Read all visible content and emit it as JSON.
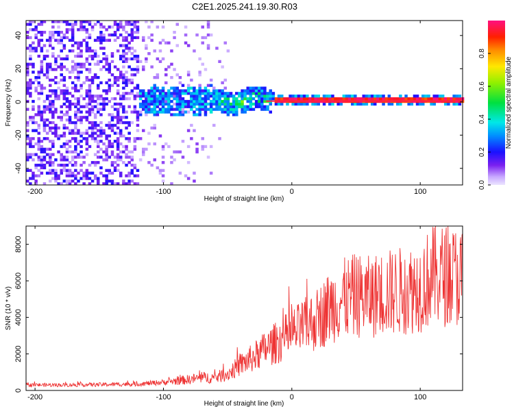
{
  "title": "C2E1.2025.241.19.30.R03",
  "chart_data": [
    {
      "type": "heatmap",
      "name": "spectrogram",
      "title": "",
      "xlabel": "Height of straight line (km)",
      "ylabel": "Frequency (Hz)",
      "xlim": [
        -207,
        133
      ],
      "ylim": [
        -50,
        49
      ],
      "xticks": [
        -200,
        -100,
        0,
        100
      ],
      "yticks": [
        -40,
        -20,
        0,
        20,
        40
      ],
      "colorbar": {
        "label": "Normalized spectral amplitude",
        "range": [
          0,
          1
        ],
        "ticks": [
          0.0,
          0.2,
          0.4,
          0.6,
          0.8
        ],
        "tick_labels": [
          "0.0",
          "0.2",
          "0.4",
          "0.6",
          "0.8"
        ]
      },
      "regions": [
        {
          "x_range": [
            -207,
            -120
          ],
          "freq_range": [
            -50,
            49
          ],
          "amplitude": "0.1-0.25",
          "note": "broadband noise"
        },
        {
          "x_range": [
            -120,
            -60
          ],
          "freq_range": [
            -12,
            8
          ],
          "amplitude": "0.2-0.5",
          "note": "emerging narrow band"
        },
        {
          "x_range": [
            -60,
            -15
          ],
          "freq_range": [
            -6,
            10
          ],
          "amplitude": "0.3-0.7"
        },
        {
          "x_range": [
            -15,
            133
          ],
          "freq_range": [
            -1,
            2
          ],
          "amplitude": "0.9-1.0",
          "note": "strong tone near 0-1 Hz"
        }
      ]
    },
    {
      "type": "line",
      "name": "snr",
      "title": "",
      "xlabel": "Height of straight line (km)",
      "ylabel": "SNR (10 * v/v)",
      "xlim": [
        -207,
        133
      ],
      "ylim": [
        0,
        9000
      ],
      "xticks": [
        -200,
        -100,
        0,
        100
      ],
      "yticks": [
        0,
        2000,
        4000,
        6000,
        8000
      ],
      "series": [
        {
          "name": "SNR",
          "color": "#ee3333",
          "x": [
            -207,
            -180,
            -150,
            -120,
            -100,
            -80,
            -70,
            -60,
            -50,
            -40,
            -30,
            -20,
            -10,
            0,
            10,
            20,
            30,
            40,
            50,
            60,
            70,
            80,
            90,
            100,
            110,
            120,
            133
          ],
          "y": [
            300,
            300,
            320,
            350,
            450,
            600,
            700,
            700,
            900,
            1400,
            1800,
            2300,
            2700,
            3100,
            3500,
            3900,
            4600,
            5000,
            5200,
            5100,
            5300,
            5400,
            5500,
            5700,
            6300,
            6300,
            6200
          ]
        }
      ]
    }
  ]
}
